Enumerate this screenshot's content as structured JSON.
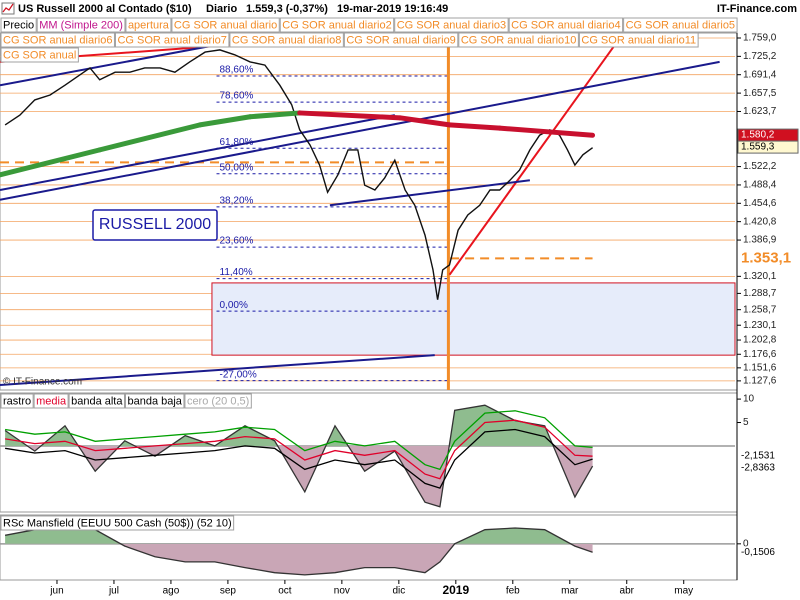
{
  "chart_data": [
    {
      "type": "line",
      "title": "US Russell 2000 al Contado ($10)",
      "period": "Diario",
      "subtitle": "1.559,3 (-0,37%)",
      "date": "19-mar-2019 19:16:49",
      "source": "IT-Finance.com",
      "watermark": "© IT-Finance.com",
      "annotation": "RUSSELL 2000",
      "legend": [
        {
          "name": "Precio",
          "color": "#000000"
        },
        {
          "name": "MM (Simple 200)",
          "color": "#c0148c"
        },
        {
          "name": "apertura",
          "color": "#f28c28"
        },
        {
          "name": "CG SOR anual diario",
          "color": "#f28c28"
        },
        {
          "name": "CG SOR anual diario2",
          "color": "#f28c28"
        },
        {
          "name": "CG SOR anual diario3",
          "color": "#f28c28"
        },
        {
          "name": "CG SOR anual diario4",
          "color": "#f28c28"
        },
        {
          "name": "CG SOR anual diario5",
          "color": "#f28c28"
        },
        {
          "name": "CG SOR anual diario6",
          "color": "#f28c28"
        },
        {
          "name": "CG SOR anual diario7",
          "color": "#f28c28"
        },
        {
          "name": "CG SOR anual diario8",
          "color": "#f28c28"
        },
        {
          "name": "CG SOR anual diario9",
          "color": "#f28c28"
        },
        {
          "name": "CG SOR anual diario10",
          "color": "#f28c28"
        },
        {
          "name": "CG SOR anual diario11",
          "color": "#f28c28"
        },
        {
          "name": "CG SOR anual",
          "color": "#f28c28"
        }
      ],
      "xlim": [
        5,
        17.9
      ],
      "xticks": [
        {
          "value": 6,
          "label": "jun"
        },
        {
          "value": 7,
          "label": "jul"
        },
        {
          "value": 8,
          "label": "ago"
        },
        {
          "value": 9,
          "label": "sep"
        },
        {
          "value": 10,
          "label": "oct"
        },
        {
          "value": 11,
          "label": "nov"
        },
        {
          "value": 12,
          "label": "dic"
        },
        {
          "value": 13,
          "label": "2019"
        },
        {
          "value": 14,
          "label": "feb"
        },
        {
          "value": 15,
          "label": "mar"
        },
        {
          "value": 16,
          "label": "abr"
        },
        {
          "value": 17,
          "label": "may"
        }
      ],
      "ylim": [
        1110.8,
        1768.2
      ],
      "yticks": [
        {
          "value": 1759.0,
          "label": "1.759,0"
        },
        {
          "value": 1725.2,
          "label": "1.725,2"
        },
        {
          "value": 1691.4,
          "label": "1.691,4"
        },
        {
          "value": 1657.5,
          "label": "1.657,5"
        },
        {
          "value": 1623.7,
          "label": "1.623,7"
        },
        {
          "value": 1522.2,
          "label": "1.522,2"
        },
        {
          "value": 1488.4,
          "label": "1.488,4"
        },
        {
          "value": 1454.6,
          "label": "1.454,6"
        },
        {
          "value": 1420.8,
          "label": "1.420,8"
        },
        {
          "value": 1386.9,
          "label": "1.386,9"
        },
        {
          "value": 1320.1,
          "label": "1.320,1"
        },
        {
          "value": 1288.7,
          "label": "1.288,7"
        },
        {
          "value": 1258.7,
          "label": "1.258,7"
        },
        {
          "value": 1230.1,
          "label": "1.230,1"
        },
        {
          "value": 1202.8,
          "label": "1.202,8"
        },
        {
          "value": 1176.6,
          "label": "1.176,6"
        },
        {
          "value": 1151.6,
          "label": "1.151,6"
        },
        {
          "value": 1127.6,
          "label": "1.127,6"
        }
      ],
      "grid": true,
      "grid_color": "#f4a460",
      "series": [
        {
          "color": "#111111",
          "x": [
            5.09,
            5.35,
            5.61,
            5.88,
            6.14,
            6.4,
            6.58,
            6.75,
            7.02,
            7.28,
            7.54,
            7.81,
            8.07,
            8.33,
            8.6,
            8.86,
            9.12,
            9.39,
            9.65,
            9.91,
            10.12,
            10.26,
            10.44,
            10.61,
            10.75,
            10.93,
            11.11,
            11.28,
            11.4,
            11.58,
            11.75,
            11.93,
            12.11,
            12.28,
            12.46,
            12.6,
            12.68,
            12.77,
            12.89,
            13.04,
            13.21,
            13.42,
            13.6,
            13.77,
            13.95,
            14.12,
            14.3,
            14.47,
            14.65,
            14.82,
            14.96,
            15.09,
            15.23,
            15.4
          ],
          "values": [
            1599,
            1617,
            1645,
            1654,
            1672,
            1691,
            1704,
            1682,
            1696,
            1696,
            1704,
            1704,
            1696,
            1715,
            1733,
            1737,
            1728,
            1715,
            1709,
            1672,
            1636,
            1590,
            1562,
            1525,
            1475,
            1507,
            1553,
            1553,
            1488,
            1479,
            1501,
            1534,
            1479,
            1451,
            1396,
            1332,
            1277,
            1332,
            1341,
            1405,
            1433,
            1451,
            1479,
            1479,
            1497,
            1516,
            1553,
            1580,
            1590,
            1580,
            1553,
            1525,
            1544,
            1557
          ]
        },
        {
          "color": "#3a9a3a",
          "color_down": "#c8102e",
          "x": [
            5.0,
            6.75,
            8.51,
            9.39,
            10.26,
            12.02,
            12.89,
            13.77,
            14.65,
            15.4
          ],
          "values": [
            1507,
            1553,
            1599,
            1614,
            1621,
            1612,
            1599,
            1593,
            1586,
            1580
          ]
        }
      ],
      "markers": [
        {
          "value": 1580.2,
          "label": "1.580,2",
          "background": "#d01020",
          "text_color": "#ffffff"
        },
        {
          "value": 1559.3,
          "label": "1.559,3",
          "background": "#fff8d0",
          "text_color": "#000000"
        },
        {
          "value": 1353.1,
          "label": "1.353,1",
          "background": "#ffffff",
          "text_color": "#f28c28"
        }
      ],
      "fib": {
        "x": [
          8.8,
          12.85
        ],
        "color": "#1a1aa6",
        "levels": [
          {
            "label": "88,60%",
            "price": 1689
          },
          {
            "label": "78,60%",
            "price": 1641
          },
          {
            "label": "61,80%",
            "price": 1556
          },
          {
            "label": "50,00%",
            "price": 1509
          },
          {
            "label": "38,20%",
            "price": 1448
          },
          {
            "label": "23,60%",
            "price": 1374
          },
          {
            "label": "11,40%",
            "price": 1316
          },
          {
            "label": "0,00%",
            "price": 1256
          },
          {
            "label": "-27,00%",
            "price": 1128
          }
        ]
      },
      "trendlines": [
        {
          "color": "#e8141e",
          "points": [
            [
              5,
              1715
            ],
            [
              9.04,
              1746
            ]
          ]
        },
        {
          "color": "#e8141e",
          "points": [
            [
              12.89,
              1323
            ],
            [
              15.79,
              1746
            ]
          ]
        },
        {
          "color": "#1a1a8c",
          "points": [
            [
              5,
              1672
            ],
            [
              9.04,
              1751
            ]
          ]
        },
        {
          "color": "#1a1a8c",
          "points": [
            [
              5,
              1461
            ],
            [
              17.63,
              1715
            ]
          ]
        },
        {
          "color": "#1a1a8c",
          "points": [
            [
              5,
              1479
            ],
            [
              11.93,
              1617
            ]
          ]
        },
        {
          "color": "#1a1a8c",
          "points": [
            [
              10.79,
              1451
            ],
            [
              14.3,
              1497
            ]
          ]
        },
        {
          "color": "#1a1a8c",
          "points": [
            [
              5,
              1120
            ],
            [
              12.63,
              1175
            ]
          ]
        }
      ],
      "hlines": [
        {
          "price": 1530,
          "x": [
            5,
            12.85
          ],
          "color": "#f28c28"
        },
        {
          "price": 1353.1,
          "x": [
            12.9,
            15.4
          ],
          "color": "#f28c28"
        }
      ],
      "vline": {
        "x": 12.87,
        "color": "#f28c28"
      },
      "box": {
        "x": [
          8.72,
          17.9
        ],
        "y": [
          1175,
          1308
        ],
        "color": "#d01020",
        "fill": "#e6ecfa"
      }
    },
    {
      "type": "line",
      "legend": [
        {
          "name": "rastro",
          "color": "#000000"
        },
        {
          "name": "media",
          "color": "#e0002a"
        },
        {
          "name": "banda alta",
          "color": "#000000"
        },
        {
          "name": "banda baja",
          "color": "#000000"
        },
        {
          "name": "cero (20 0,5)",
          "color": "#aaaaaa"
        }
      ],
      "ylim": [
        -14.1,
        11.3
      ],
      "yticks": [
        10,
        5
      ],
      "zero": 0,
      "markers": [
        {
          "value": -2.1531,
          "label": "-2,1531",
          "background": "#ffffff",
          "text_color": "#000000"
        },
        {
          "value": -2.8363,
          "label": "-2,8363",
          "background": "#ffffff",
          "text_color": "#000000"
        }
      ],
      "x": [
        5.09,
        5.61,
        6.14,
        6.67,
        7.19,
        7.72,
        8.25,
        8.77,
        9.3,
        9.82,
        10.35,
        10.88,
        11.4,
        11.93,
        12.46,
        12.72,
        12.98,
        13.51,
        14.04,
        14.56,
        15.09,
        15.4
      ],
      "series": [
        {
          "color": "#333333",
          "fill_positive": "#8fbc8f",
          "fill_negative": "#c9a6b6",
          "values": [
            3.3,
            -1.1,
            4.3,
            -5.4,
            1.1,
            -2.2,
            2.2,
            0,
            4.3,
            1.1,
            -9.8,
            4.3,
            -5.4,
            -1.1,
            -12,
            -13,
            7.6,
            8.7,
            5.4,
            4.3,
            -10.9,
            -4.3
          ]
        },
        {
          "color": "#e0002a",
          "values": [
            1.5,
            0.5,
            1,
            -1,
            -0.5,
            0,
            0.5,
            1,
            2,
            1.5,
            -3,
            -1,
            -2,
            -1,
            -6,
            -7,
            -1,
            5,
            5.5,
            4,
            -2,
            -2.2
          ]
        },
        {
          "color": "#00a000",
          "values": [
            3.5,
            2.5,
            3,
            1,
            1.5,
            2,
            2.5,
            3,
            4,
            3.5,
            -1,
            1,
            0,
            1,
            -4,
            -5,
            1,
            7,
            7.5,
            6,
            0,
            -0.3
          ]
        },
        {
          "color": "#000000",
          "values": [
            -0.5,
            -1.5,
            -1,
            -3,
            -2.5,
            -2,
            -1.5,
            -1,
            0,
            -0.5,
            -5,
            -3,
            -4,
            -3,
            -8,
            -9,
            -3,
            3,
            3.5,
            2,
            -4,
            -2.8
          ]
        }
      ]
    },
    {
      "type": "line",
      "legend": [
        {
          "name": "RSc Mansfield (EEUU 500 Cash (50$)) (52 10)",
          "color": "#000000"
        }
      ],
      "ylim": [
        -0.64,
        0.51
      ],
      "yticks": [
        0
      ],
      "zero": 0,
      "markers": [
        {
          "value": -0.1506,
          "label": "-0,1506",
          "background": "#ffffff",
          "text_color": "#000000"
        }
      ],
      "x": [
        5.09,
        5.61,
        6.14,
        6.67,
        7.19,
        7.72,
        8.25,
        8.77,
        9.3,
        9.82,
        10.35,
        10.88,
        11.4,
        11.93,
        12.46,
        12.72,
        12.98,
        13.51,
        14.04,
        14.56,
        15.09,
        15.4
      ],
      "series": [
        {
          "color": "#333333",
          "fill_positive": "#8fbc8f",
          "fill_negative": "#c9a6b6",
          "values": [
            0.15,
            0.25,
            0.28,
            0.25,
            -0.04,
            -0.23,
            -0.32,
            -0.32,
            -0.42,
            -0.51,
            -0.55,
            -0.51,
            -0.42,
            -0.42,
            -0.51,
            -0.32,
            0,
            0.25,
            0.28,
            0.25,
            -0.04,
            -0.15
          ]
        }
      ]
    }
  ]
}
